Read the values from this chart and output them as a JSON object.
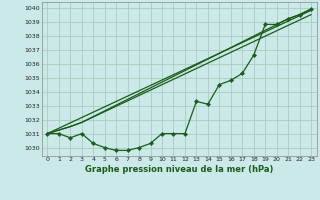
{
  "title": "Graphe pression niveau de la mer (hPa)",
  "bg_color": "#cbe9e9",
  "grid_color": "#aaccbb",
  "line_color": "#1a5c1a",
  "marker_color": "#1a5c1a",
  "xlim": [
    -0.5,
    23.5
  ],
  "ylim": [
    1029.4,
    1040.4
  ],
  "yticks": [
    1030,
    1031,
    1032,
    1033,
    1034,
    1035,
    1036,
    1037,
    1038,
    1039,
    1040
  ],
  "xticks": [
    0,
    1,
    2,
    3,
    4,
    5,
    6,
    7,
    8,
    9,
    10,
    11,
    12,
    13,
    14,
    15,
    16,
    17,
    18,
    19,
    20,
    21,
    22,
    23
  ],
  "line1_x": [
    0,
    23
  ],
  "line1_y": [
    1031.0,
    1039.8
  ],
  "line2_x": [
    0,
    2,
    3,
    23
  ],
  "line2_y": [
    1031.0,
    1031.5,
    1031.8,
    1039.5
  ],
  "line3_x": [
    0,
    2,
    3,
    21,
    22,
    23
  ],
  "line3_y": [
    1031.0,
    1031.5,
    1031.8,
    1039.2,
    1039.5,
    1039.9
  ],
  "main_x": [
    0,
    1,
    2,
    3,
    4,
    5,
    6,
    7,
    8,
    9,
    10,
    11,
    12,
    13,
    14,
    15,
    16,
    17,
    18,
    19,
    20,
    21,
    22,
    23
  ],
  "main_y": [
    1031.0,
    1031.0,
    1030.7,
    1031.0,
    1030.3,
    1030.0,
    1029.8,
    1029.8,
    1030.0,
    1030.3,
    1031.0,
    1031.0,
    1031.0,
    1033.3,
    1033.1,
    1034.5,
    1034.8,
    1035.3,
    1036.6,
    1038.8,
    1038.8,
    1039.2,
    1039.5,
    1039.9
  ]
}
